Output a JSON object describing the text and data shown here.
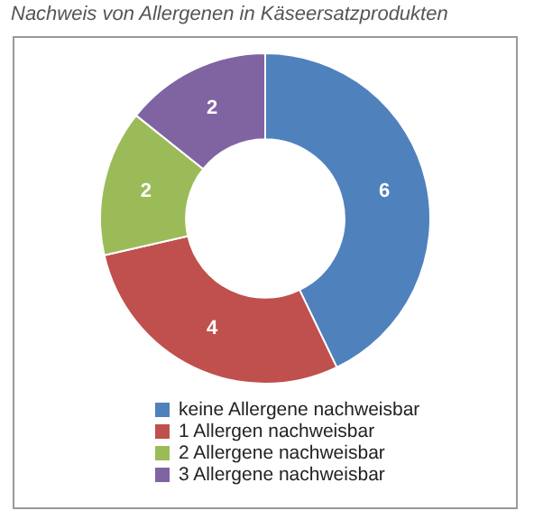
{
  "chart_data": {
    "type": "donut",
    "title": "Nachweis von Allergenen in Käseersatzprodukten",
    "categories": [
      "keine Allergene nachweisbar",
      "1 Allergen nachweisbar",
      "2 Allergene nachweisbar",
      "3 Allergene nachweisbar"
    ],
    "values": [
      6,
      4,
      2,
      2
    ],
    "colors": [
      "#4f81bd",
      "#c0504d",
      "#9bbb59",
      "#8064a2"
    ],
    "data_labels": true,
    "legend": "bottom"
  }
}
